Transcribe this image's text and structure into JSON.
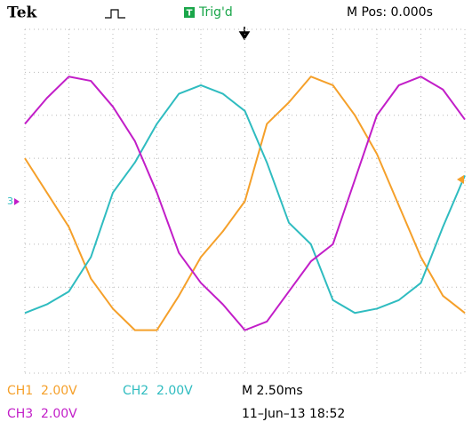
{
  "brand": "Tek",
  "trigger_badge": "T",
  "trigger_status": "Trig'd",
  "position": "M Pos: 0.000s",
  "channel_marker": "3",
  "chart_data": {
    "type": "line",
    "x": [
      0,
      0.5,
      1,
      1.5,
      2,
      2.5,
      3,
      3.5,
      4,
      4.5,
      5,
      5.5,
      6,
      6.5,
      7,
      7.5,
      8,
      8.5,
      9,
      9.5,
      10
    ],
    "xlim": [
      0,
      10
    ],
    "ylim": [
      -4,
      4
    ],
    "xticks": [
      0,
      1,
      2,
      3,
      4,
      5,
      6,
      7,
      8,
      9,
      10
    ],
    "yticks": [
      -4,
      -3,
      -2,
      -1,
      0,
      1,
      2,
      3,
      4
    ],
    "grid": true,
    "series": [
      {
        "name": "CH1",
        "scale": "2.00V",
        "color": "#f5a02a",
        "values": [
          1.0,
          0.2,
          -0.6,
          -1.8,
          -2.5,
          -3.0,
          -3.0,
          -2.2,
          -1.3,
          -0.7,
          0.0,
          1.8,
          2.3,
          2.9,
          2.7,
          2.0,
          1.1,
          -0.1,
          -1.3,
          -2.2,
          -2.6
        ]
      },
      {
        "name": "CH2",
        "scale": "2.00V",
        "color": "#2fbcc0",
        "values": [
          -2.6,
          -2.4,
          -2.1,
          -1.3,
          0.2,
          0.9,
          1.8,
          2.5,
          2.7,
          2.5,
          2.1,
          0.9,
          -0.5,
          -1.0,
          -2.3,
          -2.6,
          -2.5,
          -2.3,
          -1.9,
          -0.6,
          0.6
        ]
      },
      {
        "name": "CH3",
        "scale": "2.00V",
        "color": "#c21ec8",
        "values": [
          1.8,
          2.4,
          2.9,
          2.8,
          2.2,
          1.4,
          0.2,
          -1.2,
          -1.9,
          -2.4,
          -3.0,
          -2.8,
          -2.1,
          -1.4,
          -1.0,
          0.5,
          2.0,
          2.7,
          2.9,
          2.6,
          1.9
        ]
      }
    ]
  },
  "timebase": "M 2.50ms",
  "timestamp": "11–Jun–13 18:52"
}
